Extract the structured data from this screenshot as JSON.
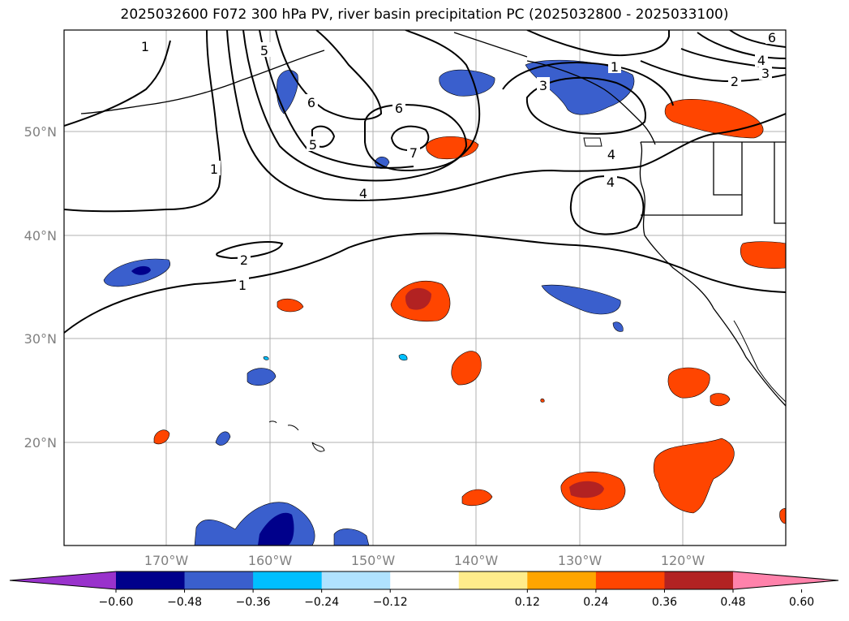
{
  "title": "2025032600 F072 300 hPa PV, river basin precipitation PC (2025032800 - 2025033100)",
  "lat_labels": [
    "50°N",
    "40°N",
    "30°N",
    "20°N"
  ],
  "lon_labels": [
    "170°W",
    "160°W",
    "150°W",
    "140°W",
    "130°W",
    "120°W"
  ],
  "colorbar": {
    "colors": [
      "#9932cc",
      "#00008b",
      "#3a5fcd",
      "#00bfff",
      "#b0e2ff",
      "#ffffff",
      "#ffec8b",
      "#ffa500",
      "#ff4500",
      "#b22222",
      "#ff82ab"
    ],
    "tick_labels": [
      "−0.60",
      "−0.48",
      "−0.36",
      "−0.24",
      "−0.12",
      "0.12",
      "0.24",
      "0.36",
      "0.48",
      "0.60"
    ]
  },
  "pv_contour_labels": [
    "1",
    "1",
    "1",
    "1",
    "2",
    "2",
    "3",
    "3",
    "4",
    "4",
    "4",
    "4",
    "5",
    "5",
    "6",
    "6",
    "6",
    "7"
  ]
}
